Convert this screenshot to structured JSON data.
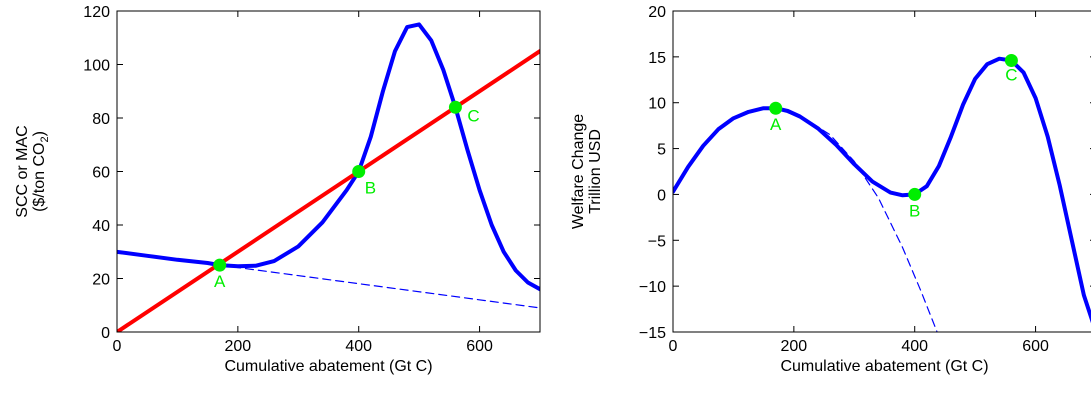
{
  "colors": {
    "scc": "#0000ff",
    "mac": "#ff0000",
    "points": "#00ee00",
    "axes": "#000000"
  },
  "chart_data": [
    {
      "type": "line",
      "xlabel": "Cumulative abatement (Gt C)",
      "ylabel_line1": "SCC or MAC",
      "ylabel_line2_prefix": "($/ton CO",
      "ylabel_line2_sub": "2",
      "ylabel_line2_suffix": ")",
      "xlim": [
        0,
        700
      ],
      "ylim": [
        0,
        120
      ],
      "x_ticks": [
        0,
        200,
        400,
        600
      ],
      "y_ticks": [
        0,
        20,
        40,
        60,
        80,
        100,
        120
      ],
      "grid": false,
      "series": [
        {
          "style": "solid-blue",
          "x": [
            0,
            50,
            100,
            150,
            170,
            200,
            230,
            260,
            300,
            340,
            380,
            400,
            420,
            440,
            460,
            480,
            500,
            520,
            540,
            560,
            580,
            600,
            620,
            640,
            660,
            680,
            700
          ],
          "y": [
            30,
            28.5,
            27,
            25.8,
            25,
            24.6,
            24.8,
            26.5,
            32,
            41,
            53,
            60,
            73,
            90,
            105,
            114,
            115,
            109,
            98,
            84,
            68,
            53,
            40,
            30,
            23,
            18.5,
            16
          ]
        },
        {
          "style": "dashed-blue",
          "x": [
            170,
            700
          ],
          "y": [
            25,
            9
          ]
        },
        {
          "style": "solid-red",
          "x": [
            0,
            700
          ],
          "y": [
            0,
            105
          ]
        }
      ],
      "points": [
        {
          "label": "A",
          "x": 170,
          "y": 25
        },
        {
          "label": "B",
          "x": 400,
          "y": 60
        },
        {
          "label": "C",
          "x": 560,
          "y": 84
        }
      ]
    },
    {
      "type": "line",
      "xlabel": "Cumulative abatement (Gt C)",
      "ylabel_line1": "Welfare Change",
      "ylabel_line2": "Trillion USD",
      "xlim": [
        0,
        700
      ],
      "ylim": [
        -15,
        20
      ],
      "x_ticks": [
        0,
        200,
        400,
        600
      ],
      "y_ticks": [
        -15,
        -10,
        -5,
        0,
        5,
        10,
        15,
        20
      ],
      "grid": false,
      "series": [
        {
          "style": "solid-blue",
          "x": [
            0,
            25,
            50,
            75,
            100,
            125,
            150,
            170,
            190,
            210,
            240,
            270,
            300,
            330,
            360,
            380,
            400,
            420,
            440,
            460,
            480,
            500,
            520,
            540,
            560,
            580,
            600,
            620,
            640,
            660,
            680,
            700
          ],
          "y": [
            0.3,
            3,
            5.3,
            7.1,
            8.3,
            9.0,
            9.4,
            9.4,
            9.1,
            8.5,
            7.2,
            5.4,
            3.3,
            1.4,
            0.2,
            -0.1,
            0.0,
            0.9,
            3.1,
            6.3,
            9.8,
            12.6,
            14.2,
            14.8,
            14.6,
            13.3,
            10.5,
            6.3,
            1.0,
            -5.0,
            -11.0,
            -15.0
          ]
        },
        {
          "style": "dashed-blue",
          "x": [
            170,
            220,
            260,
            300,
            340,
            380,
            410,
            437
          ],
          "y": [
            9.4,
            8.2,
            6.5,
            3.6,
            -0.4,
            -5.8,
            -10.5,
            -15
          ]
        }
      ],
      "points": [
        {
          "label": "A",
          "x": 170,
          "y": 9.4
        },
        {
          "label": "B",
          "x": 400,
          "y": 0.0
        },
        {
          "label": "C",
          "x": 560,
          "y": 14.6
        }
      ]
    }
  ]
}
